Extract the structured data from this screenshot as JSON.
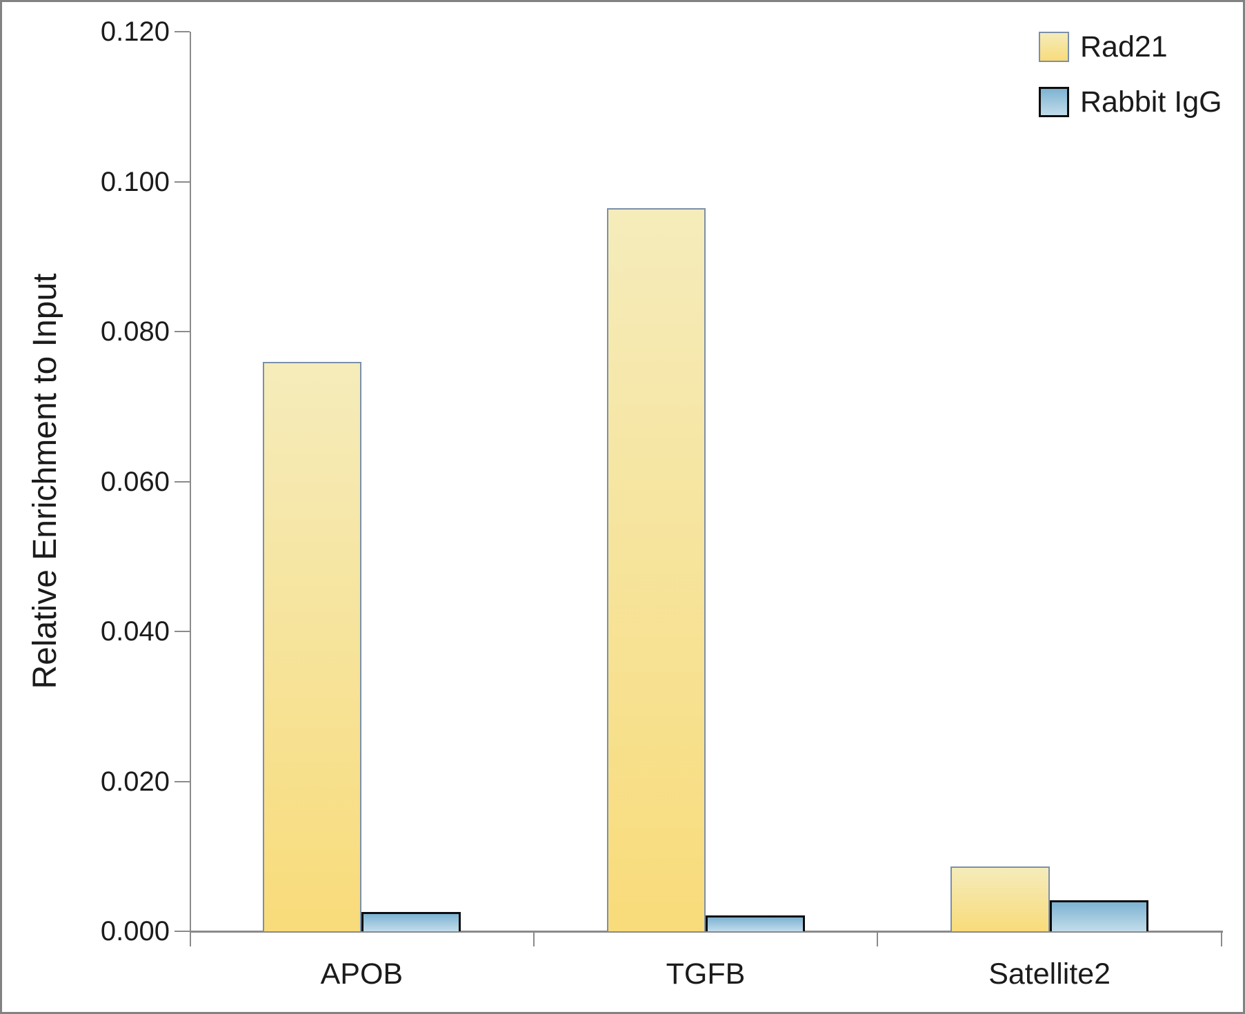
{
  "chart_data": {
    "type": "bar",
    "categories": [
      "APOB",
      "TGFB",
      "Satellite2"
    ],
    "series": [
      {
        "name": "Rad21",
        "values": [
          0.076,
          0.0965,
          0.0086
        ],
        "fill_top": "#f5ecbb",
        "fill_bottom": "#f8db7a",
        "border": "#7b8fa9"
      },
      {
        "name": "Rabbit IgG",
        "values": [
          0.0026,
          0.0021,
          0.0041
        ],
        "fill_top": "#7db3d2",
        "fill_bottom": "#c2dcea",
        "border": "#0d0d0d"
      }
    ],
    "title": "",
    "xlabel": "",
    "ylabel": "Relative Enrichment to Input",
    "ylim": [
      0,
      0.12
    ],
    "ytick_step": 0.02,
    "ytick_labels": [
      "0.000",
      "0.020",
      "0.040",
      "0.060",
      "0.080",
      "0.100",
      "0.120"
    ],
    "grid": false,
    "legend_position": "top-right",
    "axis_color": "#8a8a8a",
    "text_color": "#1b1b1b"
  }
}
